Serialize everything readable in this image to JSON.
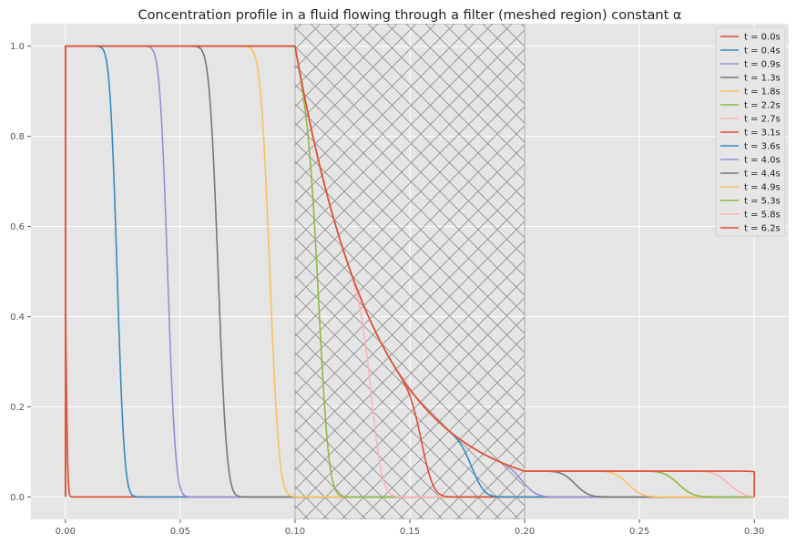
{
  "chart_data": {
    "type": "line",
    "title": "Concentration profile in a fluid flowing through a filter (meshed region) constant α",
    "xlabel": "",
    "ylabel": "",
    "xlim": [
      -0.015,
      0.315
    ],
    "ylim": [
      -0.05,
      1.05
    ],
    "x_ticks": [
      "0.00",
      "0.05",
      "0.10",
      "0.15",
      "0.20",
      "0.25",
      "0.30"
    ],
    "y_ticks": [
      "0.0",
      "0.2",
      "0.4",
      "0.6",
      "0.8",
      "1.0"
    ],
    "grid": true,
    "legend_position": "top-right",
    "filter_region": [
      0.1,
      0.2
    ],
    "series": [
      {
        "name": "t = 0.0s",
        "color": "#E24A33",
        "front": 0.0,
        "width": 0.0007
      },
      {
        "name": "t = 0.4s",
        "color": "#348ABD",
        "front": 0.0225,
        "width": 0.0025
      },
      {
        "name": "t = 0.9s",
        "color": "#988ED5",
        "front": 0.0445,
        "width": 0.0027
      },
      {
        "name": "t = 1.3s",
        "color": "#777777",
        "front": 0.0665,
        "width": 0.003
      },
      {
        "name": "t = 1.8s",
        "color": "#FBC15E",
        "front": 0.089,
        "width": 0.0032
      },
      {
        "name": "t = 2.2s",
        "color": "#8EBA42",
        "front": 0.111,
        "width": 0.0034
      },
      {
        "name": "t = 2.7s",
        "color": "#FFB5B8",
        "front": 0.134,
        "width": 0.0037
      },
      {
        "name": "t = 3.1s",
        "color": "#E24A33",
        "front": 0.156,
        "width": 0.0039
      },
      {
        "name": "t = 3.6s",
        "color": "#348ABD",
        "front": 0.178,
        "width": 0.0041
      },
      {
        "name": "t = 4.0s",
        "color": "#988ED5",
        "front": 0.2,
        "width": 0.0043
      },
      {
        "name": "t = 4.4s",
        "color": "#777777",
        "front": 0.222,
        "width": 0.0045
      },
      {
        "name": "t = 4.9s",
        "color": "#FBC15E",
        "front": 0.245,
        "width": 0.0047
      },
      {
        "name": "t = 5.3s",
        "color": "#8EBA42",
        "front": 0.267,
        "width": 0.0049
      },
      {
        "name": "t = 5.8s",
        "color": "#FFB5B8",
        "front": 0.289,
        "width": 0.0051
      },
      {
        "name": "t = 6.2s",
        "color": "#E24A33",
        "front": 0.311,
        "width": 0.0053
      }
    ]
  }
}
